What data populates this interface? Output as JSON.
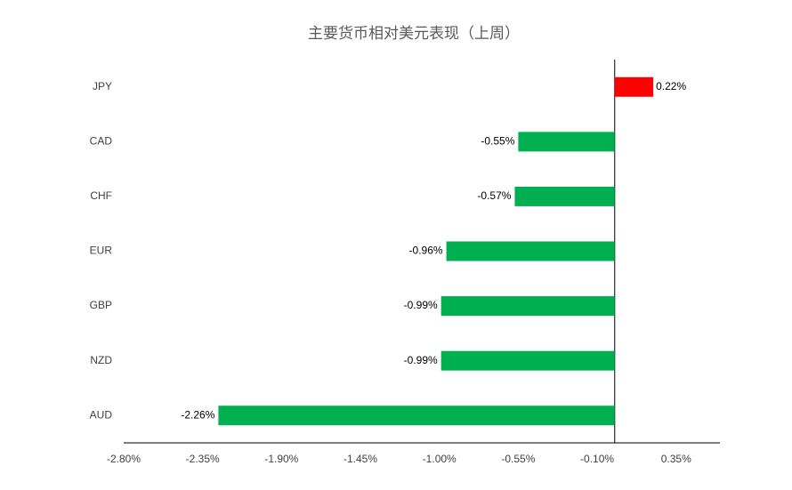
{
  "chart_data": {
    "type": "barh",
    "title": "主要货币相对美元表现（上周）",
    "categories": [
      "JPY",
      "CAD",
      "CHF",
      "EUR",
      "GBP",
      "NZD",
      "AUD"
    ],
    "values": [
      0.22,
      -0.55,
      -0.57,
      -0.96,
      -0.99,
      -0.99,
      -2.26
    ],
    "value_labels": [
      "0.22%",
      "-0.55%",
      "-0.57%",
      "-0.96%",
      "-0.99%",
      "-0.99%",
      "-2.26%"
    ],
    "positive_color": "#ff0000",
    "negative_color": "#00b050",
    "xlim": [
      -2.8,
      0.6
    ],
    "xticks": [
      {
        "value": -2.8,
        "label": "-2.80%"
      },
      {
        "value": -2.35,
        "label": "-2.35%"
      },
      {
        "value": -1.9,
        "label": "-1.90%"
      },
      {
        "value": -1.45,
        "label": "-1.45%"
      },
      {
        "value": -1.0,
        "label": "-1.00%"
      },
      {
        "value": -0.55,
        "label": "-0.55%"
      },
      {
        "value": -0.1,
        "label": "-0.10%"
      },
      {
        "value": 0.35,
        "label": "0.35%"
      }
    ],
    "grid": false
  }
}
